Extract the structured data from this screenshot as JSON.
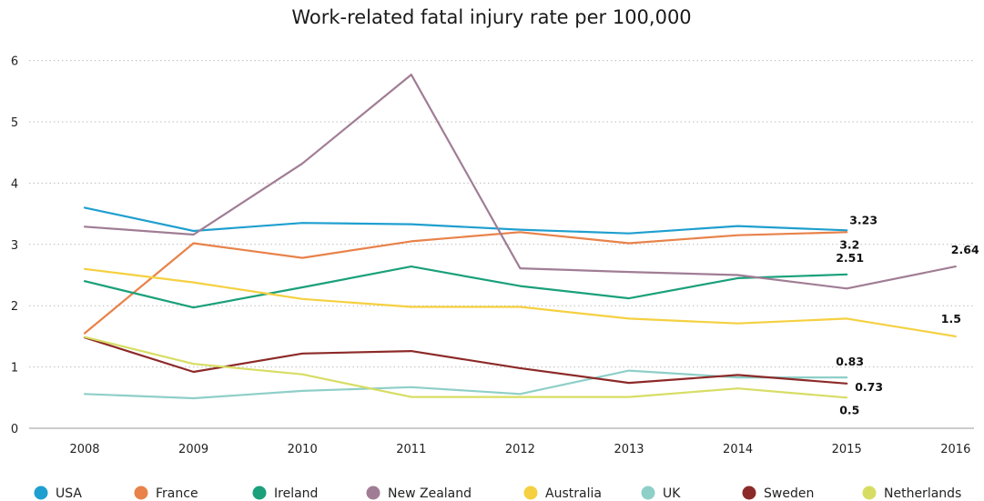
{
  "chart_data": {
    "type": "line",
    "title": "Work-related fatal injury rate per 100,000",
    "xlabel": "",
    "ylabel": "",
    "x": [
      2008,
      2009,
      2010,
      2011,
      2012,
      2013,
      2014,
      2015,
      2016
    ],
    "ylim": [
      0,
      6
    ],
    "yticks": [
      0,
      1,
      2,
      3,
      4,
      5,
      6
    ],
    "grid": true,
    "legend_position": "bottom",
    "series": [
      {
        "name": "USA",
        "color": "#1f9fcf",
        "values": [
          3.6,
          3.22,
          3.35,
          3.33,
          3.24,
          3.18,
          3.3,
          3.23,
          null
        ]
      },
      {
        "name": "France",
        "color": "#e8824a",
        "values": [
          1.55,
          3.02,
          2.78,
          3.05,
          3.2,
          3.02,
          3.15,
          3.2,
          null
        ]
      },
      {
        "name": "Ireland",
        "color": "#1aa07a",
        "values": [
          2.4,
          1.97,
          2.3,
          2.64,
          2.32,
          2.12,
          2.45,
          2.51,
          null
        ]
      },
      {
        "name": "New Zealand",
        "color": "#a07d95",
        "values": [
          3.29,
          3.16,
          4.32,
          5.77,
          2.61,
          2.55,
          2.5,
          2.28,
          2.64
        ]
      },
      {
        "name": "Australia",
        "color": "#f5d040",
        "values": [
          2.6,
          2.38,
          2.11,
          1.98,
          1.98,
          1.79,
          1.71,
          1.79,
          1.5
        ]
      },
      {
        "name": "UK",
        "color": "#8ecfc8",
        "values": [
          0.56,
          0.49,
          0.61,
          0.67,
          0.56,
          0.94,
          0.83,
          0.83,
          null
        ]
      },
      {
        "name": "Sweden",
        "color": "#8c2a28",
        "values": [
          1.48,
          0.92,
          1.22,
          1.26,
          0.98,
          0.74,
          0.87,
          0.73,
          null
        ]
      },
      {
        "name": "Netherlands",
        "color": "#d7dd63",
        "values": [
          1.49,
          1.05,
          0.88,
          0.51,
          0.51,
          0.51,
          0.65,
          0.5,
          null
        ]
      }
    ],
    "annotations": [
      {
        "text": "3.23",
        "x": 2015,
        "y": 3.23
      },
      {
        "text": "3.2",
        "x": 2015,
        "y": 3.2
      },
      {
        "text": "2.51",
        "x": 2015,
        "y": 2.51
      },
      {
        "text": "2.64",
        "x": 2016,
        "y": 2.64
      },
      {
        "text": "1.5",
        "x": 2016,
        "y": 1.5
      },
      {
        "text": "0.83",
        "x": 2015,
        "y": 0.83
      },
      {
        "text": "0.73",
        "x": 2015,
        "y": 0.73
      },
      {
        "text": "0.5",
        "x": 2015,
        "y": 0.5
      }
    ]
  }
}
